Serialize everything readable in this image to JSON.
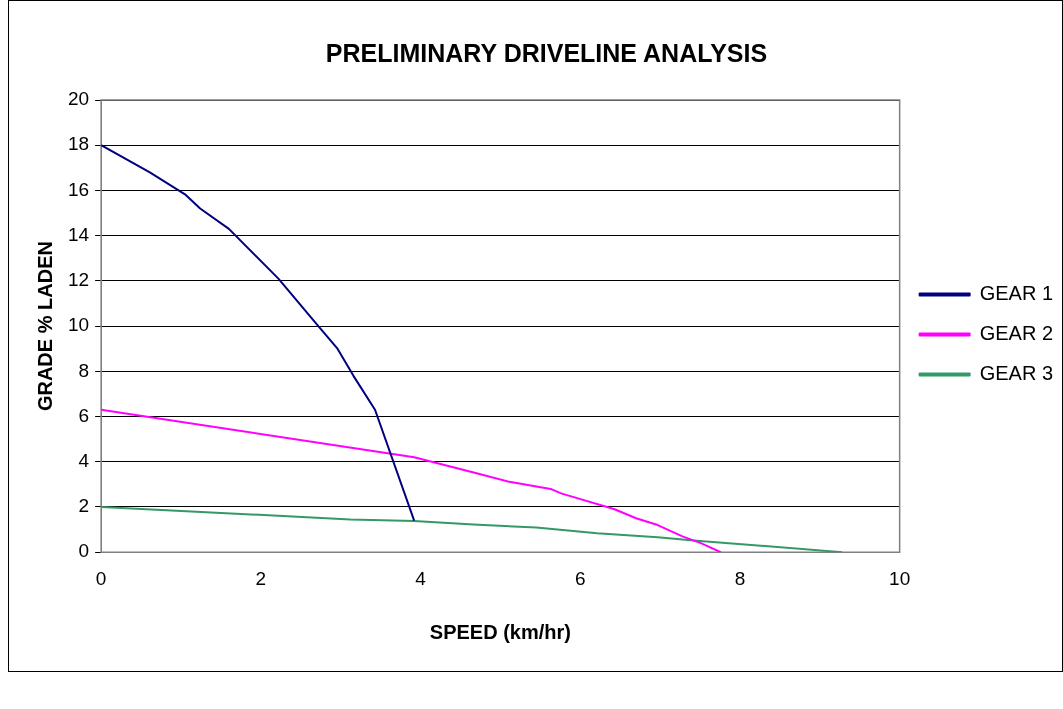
{
  "chart_data": {
    "type": "line",
    "title": "PRELIMINARY DRIVELINE ANALYSIS",
    "xlabel": "SPEED (km/hr)",
    "ylabel": "GRADE % LADEN",
    "xlim": [
      0,
      10
    ],
    "xticks": [
      0,
      2,
      4,
      6,
      8,
      10
    ],
    "ylim": [
      0,
      20
    ],
    "yticks": [
      0,
      2,
      4,
      6,
      8,
      10,
      12,
      14,
      16,
      18,
      20
    ],
    "grid": "y",
    "legend": "right",
    "marker": "none",
    "line_style": "solid",
    "series": [
      {
        "name": "GEAR 1",
        "color": "#000080",
        "x": [
          0,
          0.61,
          1.06,
          1.24,
          1.6,
          2.22,
          2.72,
          2.96,
          3.16,
          3.43,
          3.92
        ],
        "values": [
          18,
          16.8,
          15.8,
          15.2,
          14.3,
          12.1,
          10,
          9,
          7.8,
          6.3,
          1.4
        ]
      },
      {
        "name": "GEAR 2",
        "color": "#ff00ff",
        "x": [
          0,
          3.92,
          4.69,
          5.13,
          5.63,
          5.76,
          6.43,
          6.7,
          6.97,
          7.28,
          7.51,
          7.76
        ],
        "values": [
          6.3,
          4.2,
          3.5,
          3.1,
          2.8,
          2.6,
          1.9,
          1.5,
          1.2,
          0.7,
          0.4,
          0
        ]
      },
      {
        "name": "GEAR 3",
        "color": "#339966",
        "x": [
          0,
          3.12,
          3.92,
          4.66,
          5.45,
          6.21,
          6.97,
          7.42,
          9.28
        ],
        "values": [
          2,
          1.45,
          1.38,
          1.23,
          1.09,
          0.84,
          0.66,
          0.52,
          0
        ]
      }
    ]
  }
}
